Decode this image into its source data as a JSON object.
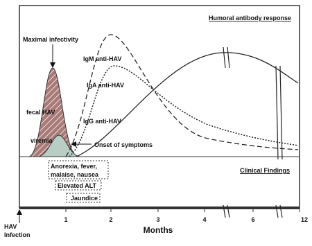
{
  "headings": {
    "antibody": "Humoral antibody response",
    "clinical": "Clinical Findings"
  },
  "annotations": {
    "max_infectivity": "Maximal infectivity",
    "onset": "Onset of symptoms",
    "infection": [
      "HAV",
      "Infection"
    ]
  },
  "curves": {
    "igm": "IgM anti-HAV",
    "iga": "IgA anti-HAV",
    "igg": "IgG anti-HAV",
    "fecal": "fecal HAV",
    "viremia": "viremia"
  },
  "findings": [
    [
      "Anorexia, fever,",
      "malaise, nausea"
    ],
    [
      "Elevated ALT"
    ],
    [
      "Jaundice"
    ]
  ],
  "axis": {
    "label": "Months",
    "ticks": [
      "1",
      "2",
      "3",
      "4",
      "6",
      "12"
    ]
  }
}
